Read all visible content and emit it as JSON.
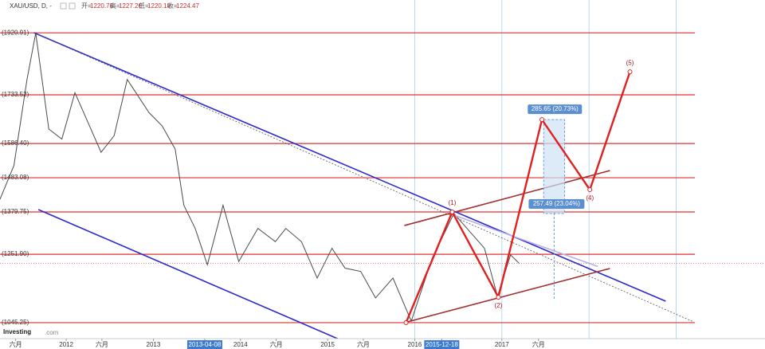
{
  "chart_data": {
    "type": "line",
    "header": {
      "symbol": "XAU/USD, D, -",
      "ohlc": [
        {
          "label": "开=",
          "value": 1220.76
        },
        {
          "label": "高=",
          "value": 1227.26
        },
        {
          "label": "低=",
          "value": 1220.18
        },
        {
          "label": "收=",
          "value": 1224.47
        }
      ]
    },
    "logo": "Investing",
    "logo_suffix": ".com",
    "xlim": [
      2011.24,
      2020.02
    ],
    "ylim": [
      997,
      2020
    ],
    "xticks": [
      {
        "value": 2011.42,
        "label": "六月"
      },
      2012,
      {
        "value": 2012.41,
        "label": "六月"
      },
      2013,
      {
        "value": 2013.59,
        "label": "2013-04-08",
        "highlight": true
      },
      2014,
      {
        "value": 2014.41,
        "label": "六月"
      },
      2015,
      {
        "value": 2015.41,
        "label": "六月"
      },
      2016,
      {
        "value": 2016.31,
        "label": "2015-12-18",
        "highlight": true
      },
      2017,
      {
        "value": 2017.42,
        "label": "六月"
      }
    ],
    "vlines": [
      2016,
      2017,
      2018,
      2019
    ],
    "levels": [
      {
        "value": 1920.91,
        "label": "(1920.91)"
      },
      {
        "value": 1733.52,
        "label": "(1733.52)"
      },
      {
        "value": 1586.4,
        "label": "(1586.40)"
      },
      {
        "value": 1483.08,
        "label": "(1483.08)"
      },
      {
        "value": 1379.75,
        "label": "(1379.75)"
      },
      {
        "value": 1251.9,
        "label": "(1251.90)"
      },
      {
        "value": 1045.25,
        "label": "(1045.25)"
      }
    ],
    "level_color": "#e03030",
    "last_price": 1224.47,
    "x": [
      2011.24,
      2011.4,
      2011.55,
      2011.65,
      2011.8,
      2011.95,
      2012.1,
      2012.25,
      2012.4,
      2012.55,
      2012.7,
      2012.8,
      2012.95,
      2013.1,
      2013.25,
      2013.35,
      2013.48,
      2013.62,
      2013.8,
      2013.98,
      2014.2,
      2014.4,
      2014.52,
      2014.7,
      2014.88,
      2015.05,
      2015.2,
      2015.38,
      2015.55,
      2015.75,
      2015.96,
      2016.2,
      2016.45,
      2016.6,
      2016.8,
      2016.95,
      2017.1,
      2017.2
    ],
    "series": [
      {
        "name": "XAU/USD",
        "color": "#4a4a4a",
        "values": [
          1418,
          1520,
          1780,
          1920,
          1630,
          1600,
          1740,
          1650,
          1560,
          1610,
          1780,
          1740,
          1680,
          1640,
          1570,
          1400,
          1330,
          1220,
          1400,
          1230,
          1330,
          1290,
          1330,
          1290,
          1180,
          1270,
          1210,
          1200,
          1120,
          1180,
          1050,
          1240,
          1375,
          1330,
          1270,
          1125,
          1250,
          1224
        ]
      }
    ],
    "lines": [
      {
        "color": "#2a2acf",
        "style": "solid",
        "x": [
          2011.63,
          2018.88
        ],
        "y": [
          1920.91,
          1110.2
        ]
      },
      {
        "color": "#2a2acf",
        "style": "solid",
        "x": [
          2011.68,
          2015.22
        ],
        "y": [
          1386.9,
          985
        ]
      },
      {
        "color": "#555555",
        "style": "dotted",
        "x": [
          2011.63,
          2019.2
        ],
        "y": [
          1920.91,
          1047.7
        ]
      },
      {
        "color": "#a03030",
        "style": "solid",
        "x": [
          2015.88,
          2018.24
        ],
        "y": [
          1338.7,
          1504.7
        ]
      },
      {
        "color": "#a03030",
        "style": "solid",
        "x": [
          2015.88,
          2018.24
        ],
        "y": [
          1045.25,
          1208.9
        ]
      },
      {
        "color": "#b8b0e8",
        "style": "solid",
        "x": [
          2016.43,
          2018.1
        ],
        "y": [
          1372,
          1215
        ]
      }
    ],
    "wave": {
      "color": "#e02020",
      "points": [
        {
          "x": 2015.9,
          "y": 1045.25,
          "label": null
        },
        {
          "x": 2016.43,
          "y": 1379.75,
          "label": "(1)"
        },
        {
          "x": 2016.96,
          "y": 1122,
          "label": "(2)"
        },
        {
          "x": 2017.46,
          "y": 1658.7,
          "label": null
        },
        {
          "x": 2018.01,
          "y": 1447,
          "label": "(4)"
        },
        {
          "x": 2018.47,
          "y": 1803,
          "label": "(5)"
        }
      ]
    },
    "measures": [
      {
        "label": "285.65 (20.73%)",
        "x": [
          2017.48,
          2017.72
        ],
        "y": [
          1374.8,
          1658.7
        ]
      },
      {
        "label": "257.49 (23.04%)",
        "x": [
          2017.6,
          2017.6
        ],
        "y": [
          1117.4,
          1379.75
        ]
      }
    ]
  }
}
